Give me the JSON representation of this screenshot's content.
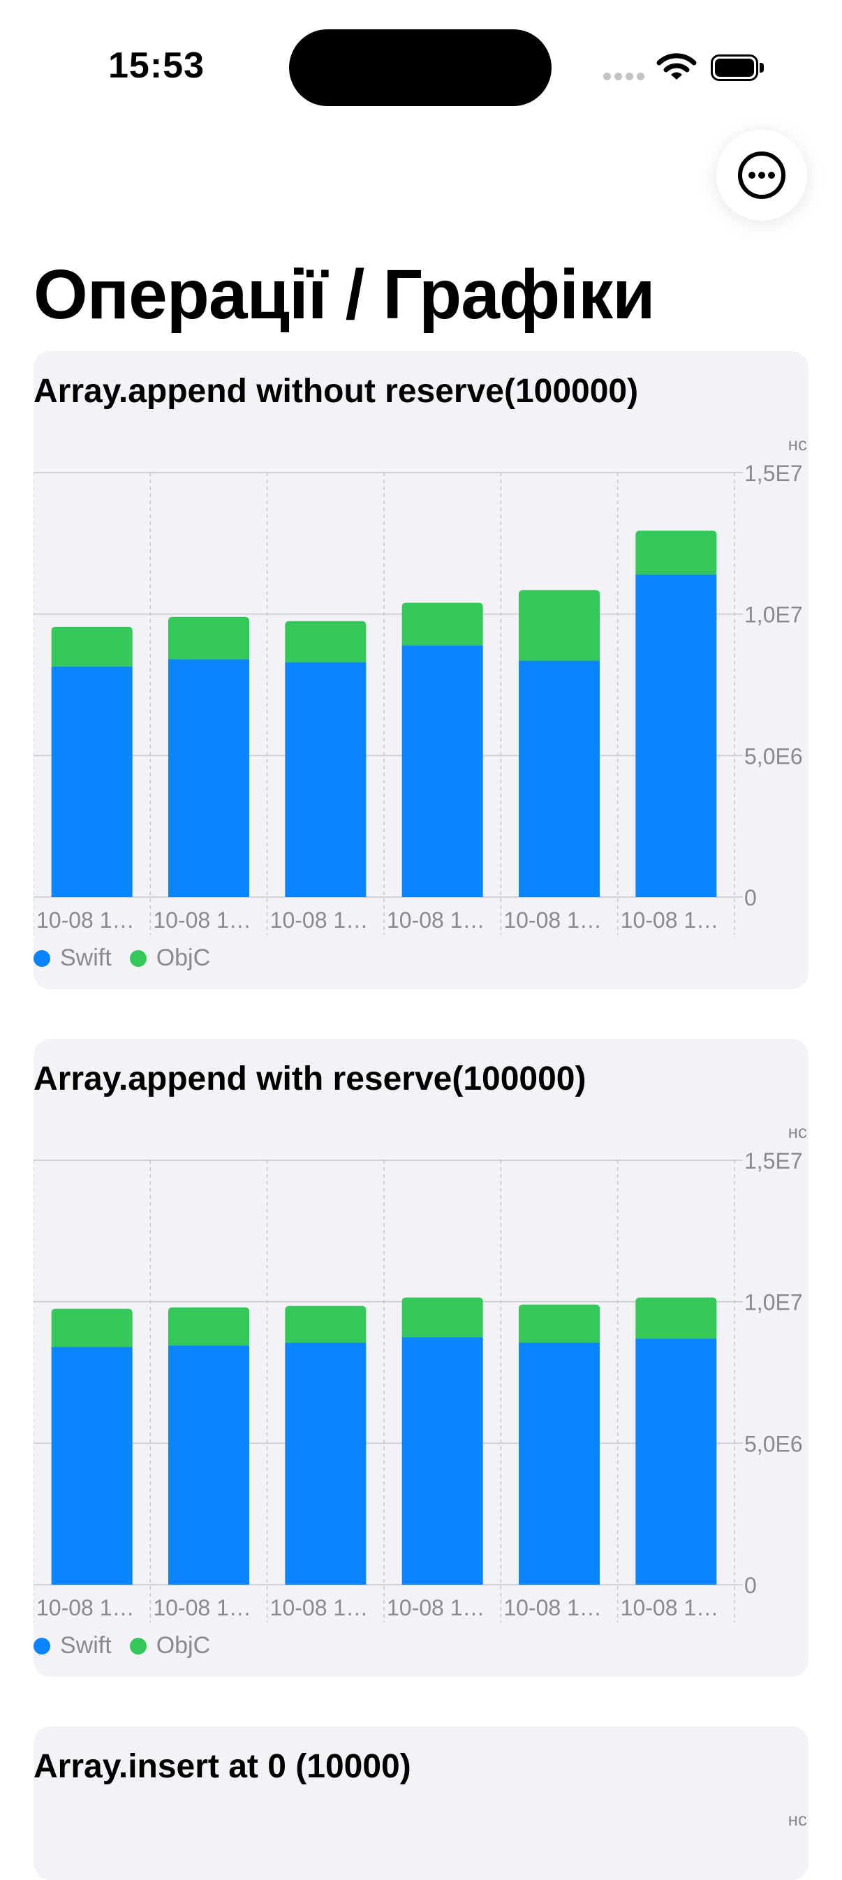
{
  "status_bar": {
    "time": "15:53"
  },
  "page": {
    "title": "Операції / Графіки"
  },
  "colors": {
    "swift": "#0a84ff",
    "objc": "#34c759",
    "card_bg": "#f2f2f7",
    "axis_text": "#8a8a8e"
  },
  "icons": {
    "more": "ellipsis-circle-icon"
  },
  "chart_data": [
    {
      "type": "bar",
      "stacked": true,
      "title": "Array.append without reserve(100000)",
      "unit": "нс",
      "categories": [
        "10-08 1…",
        "10-08 1…",
        "10-08 1…",
        "10-08 1…",
        "10-08 1…",
        "10-08 1…"
      ],
      "series": [
        {
          "name": "Swift",
          "values": [
            8150000,
            8400000,
            8300000,
            8900000,
            8350000,
            11400000
          ]
        },
        {
          "name": "ObjC",
          "values": [
            1400000,
            1500000,
            1450000,
            1500000,
            2500000,
            1550000
          ]
        }
      ],
      "yticks": [
        "0",
        "5,0E6",
        "1,0E7",
        "1,5E7"
      ],
      "ylim": [
        0,
        15000000
      ],
      "grid": true,
      "legend_position": "bottom-left"
    },
    {
      "type": "bar",
      "stacked": true,
      "title": "Array.append with reserve(100000)",
      "unit": "нс",
      "categories": [
        "10-08 1…",
        "10-08 1…",
        "10-08 1…",
        "10-08 1…",
        "10-08 1…",
        "10-08 1…"
      ],
      "series": [
        {
          "name": "Swift",
          "values": [
            8400000,
            8450000,
            8550000,
            8750000,
            8550000,
            8700000
          ]
        },
        {
          "name": "ObjC",
          "values": [
            1350000,
            1350000,
            1300000,
            1400000,
            1350000,
            1450000
          ]
        }
      ],
      "yticks": [
        "0",
        "5,0E6",
        "1,0E7",
        "1,5E7"
      ],
      "ylim": [
        0,
        15000000
      ],
      "grid": true,
      "legend_position": "bottom-left"
    },
    {
      "type": "bar",
      "stacked": true,
      "title": "Array.insert at 0 (10000)",
      "unit": "нс"
    }
  ]
}
